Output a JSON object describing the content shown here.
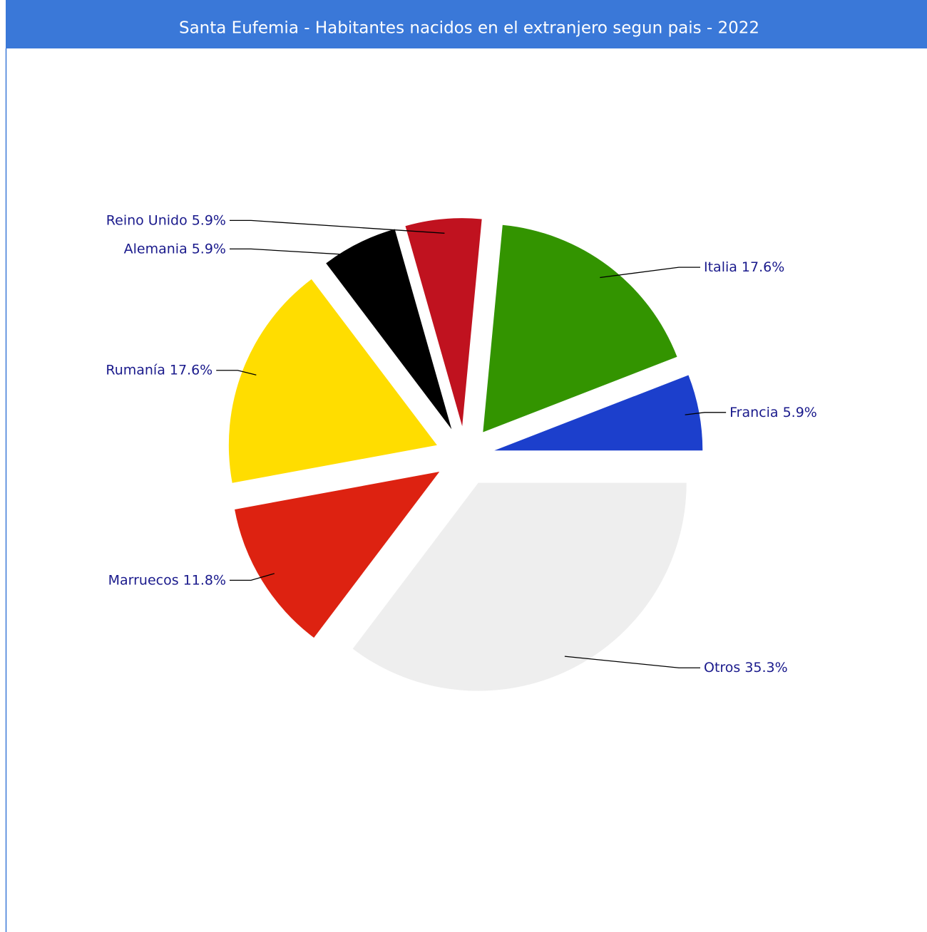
{
  "chart_data": {
    "type": "pie",
    "title": "Santa Eufemia - Habitantes nacidos en el extranjero segun pais - 2022",
    "categories": [
      "Francia",
      "Italia",
      "Reino Unido",
      "Alemania",
      "Rumanía",
      "Marruecos",
      "Otros"
    ],
    "values": [
      5.9,
      17.6,
      5.9,
      5.9,
      17.6,
      11.8,
      35.3
    ],
    "value_labels": [
      "5.9%",
      "17.6%",
      "5.9%",
      "5.9%",
      "17.6%",
      "11.8%",
      "35.3%"
    ],
    "colors": [
      "#1c3fcc",
      "#339400",
      "#c0121f",
      "#000000",
      "#ffdd00",
      "#dd2211",
      "#eeeeee"
    ]
  }
}
